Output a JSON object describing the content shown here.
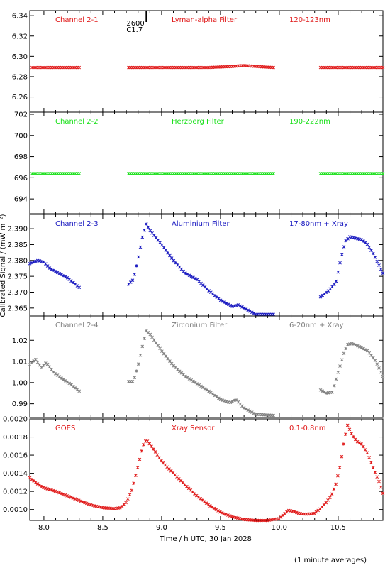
{
  "chart_data": [
    {
      "type": "scatter",
      "labels": [
        "Channel 2-1",
        "Lyman-alpha Filter",
        "120-123nm"
      ],
      "color": "#e01818",
      "ylim": [
        6.245,
        6.345
      ],
      "yticks": [
        "6.26",
        "6.28",
        "6.30",
        "6.32",
        "6.34"
      ],
      "ytick_values": [
        6.26,
        6.28,
        6.3,
        6.32,
        6.34
      ],
      "annotation": {
        "x": 8.87,
        "text_top": "2600",
        "text_bottom": "C1.7"
      },
      "series": [
        {
          "x": [
            7.9,
            8.3
          ],
          "y": [
            6.289,
            6.289
          ]
        },
        {
          "x": [
            8.72,
            9.4,
            9.6,
            9.7,
            9.8,
            9.95
          ],
          "y": [
            6.289,
            6.289,
            6.29,
            6.291,
            6.29,
            6.289
          ]
        },
        {
          "x": [
            10.35,
            10.88
          ],
          "y": [
            6.289,
            6.289
          ]
        }
      ]
    },
    {
      "type": "scatter",
      "labels": [
        "Channel 2-2",
        "Herzberg Filter",
        "190-222nm"
      ],
      "color": "#18e018",
      "ylim": [
        692.6,
        702.2
      ],
      "yticks": [
        "694",
        "696",
        "698",
        "700",
        "702"
      ],
      "ytick_values": [
        694,
        696,
        698,
        700,
        702
      ],
      "series": [
        {
          "x": [
            7.9,
            8.3
          ],
          "y": [
            696.4,
            696.4
          ]
        },
        {
          "x": [
            8.72,
            9.95
          ],
          "y": [
            696.4,
            696.4
          ]
        },
        {
          "x": [
            10.35,
            10.88
          ],
          "y": [
            696.4,
            696.4
          ]
        }
      ]
    },
    {
      "type": "scatter",
      "labels": [
        "Channel 2-3",
        "Aluminium Filter",
        "17-80nm + Xray"
      ],
      "color": "#1818c0",
      "ylim": [
        2.3625,
        2.3945
      ],
      "yticks": [
        "2.365",
        "2.370",
        "2.375",
        "2.380",
        "2.385",
        "2.390"
      ],
      "ytick_values": [
        2.365,
        2.37,
        2.375,
        2.38,
        2.385,
        2.39
      ],
      "series": [
        {
          "x": [
            7.88,
            7.95,
            8.0,
            8.05,
            8.1,
            8.2,
            8.3
          ],
          "y": [
            2.379,
            2.38,
            2.3795,
            2.3775,
            2.3765,
            2.3745,
            2.3715
          ]
        },
        {
          "x": [
            8.72,
            8.76,
            8.8,
            8.84,
            8.87,
            8.9,
            9.0,
            9.1,
            9.2,
            9.3,
            9.4,
            9.5,
            9.6,
            9.65,
            9.7,
            9.8,
            9.95
          ],
          "y": [
            2.3725,
            2.374,
            2.3805,
            2.388,
            2.3915,
            2.3895,
            2.385,
            2.38,
            2.376,
            2.374,
            2.3705,
            2.3675,
            2.3655,
            2.366,
            2.365,
            2.363,
            2.363
          ]
        },
        {
          "x": [
            10.35,
            10.42,
            10.48,
            10.52,
            10.56,
            10.6,
            10.65,
            10.7,
            10.75,
            10.8,
            10.88
          ],
          "y": [
            2.3685,
            2.3705,
            2.373,
            2.38,
            2.386,
            2.3875,
            2.387,
            2.3865,
            2.385,
            2.382,
            2.376
          ]
        }
      ]
    },
    {
      "type": "scatter",
      "labels": [
        "Channel 2-4",
        "Zirconium Filter",
        "6-20nm + Xray"
      ],
      "color": "#808080",
      "ylim": [
        0.9835,
        1.0315
      ],
      "yticks": [
        "0.99",
        "1.00",
        "1.01",
        "1.02"
      ],
      "ytick_values": [
        0.99,
        1.0,
        1.01,
        1.02
      ],
      "series": [
        {
          "x": [
            7.88,
            7.93,
            7.98,
            8.02,
            8.08,
            8.15,
            8.22,
            8.3
          ],
          "y": [
            1.0085,
            1.011,
            1.007,
            1.0095,
            1.005,
            1.002,
            0.9995,
            0.996
          ]
        },
        {
          "x": [
            8.72,
            8.76,
            8.8,
            8.84,
            8.87,
            8.9,
            9.0,
            9.1,
            9.2,
            9.3,
            9.4,
            9.5,
            9.58,
            9.63,
            9.7,
            9.8,
            9.95
          ],
          "y": [
            1.0005,
            1.0005,
            1.008,
            1.018,
            1.0245,
            1.023,
            1.015,
            1.008,
            1.003,
            0.9995,
            0.996,
            0.992,
            0.9905,
            0.992,
            0.988,
            0.985,
            0.9845
          ]
        },
        {
          "x": [
            10.35,
            10.4,
            10.45,
            10.5,
            10.55,
            10.58,
            10.62,
            10.68,
            10.75,
            10.82,
            10.88
          ],
          "y": [
            0.9965,
            0.995,
            0.9955,
            1.005,
            1.014,
            1.018,
            1.0185,
            1.017,
            1.015,
            1.01,
            1.003
          ]
        }
      ]
    },
    {
      "type": "scatter",
      "labels": [
        "GOES",
        "Xray Sensor",
        "0.1-0.8nm"
      ],
      "color": "#e01818",
      "ylim": [
        0.00088,
        0.002
      ],
      "yticks": [
        "0.0010",
        "0.0012",
        "0.0014",
        "0.0016",
        "0.0018",
        "0.0020"
      ],
      "ytick_values": [
        0.001,
        0.0012,
        0.0014,
        0.0016,
        0.0018,
        0.002
      ],
      "xlabel": "Time / h UTC, 30 Jan 2028",
      "xlim": [
        7.88,
        10.88
      ],
      "xticks": [
        "8.0",
        "8.5",
        "9.0",
        "9.5",
        "10.0",
        "10.5"
      ],
      "xtick_values": [
        8.0,
        8.5,
        9.0,
        9.5,
        10.0,
        10.5
      ],
      "series": [
        {
          "x": [
            7.88,
            7.95,
            8.0,
            8.1,
            8.2,
            8.3,
            8.4,
            8.5,
            8.6,
            8.65,
            8.7,
            8.75,
            8.8,
            8.84,
            8.87,
            8.9,
            8.95,
            9.0,
            9.1,
            9.2,
            9.3,
            9.4,
            9.5,
            9.6,
            9.7,
            9.8,
            9.9,
            9.95,
            10.0,
            10.05,
            10.08,
            10.12,
            10.16,
            10.2,
            10.25,
            10.3,
            10.35,
            10.4,
            10.44,
            10.48,
            10.52,
            10.55,
            10.58,
            10.62,
            10.66,
            10.7,
            10.75,
            10.8,
            10.85,
            10.88
          ],
          "y": [
            0.00135,
            0.00128,
            0.00124,
            0.0012,
            0.00115,
            0.0011,
            0.00105,
            0.00102,
            0.00101,
            0.00102,
            0.00108,
            0.00122,
            0.00148,
            0.0017,
            0.00177,
            0.00172,
            0.00163,
            0.00153,
            0.0014,
            0.00127,
            0.00115,
            0.00105,
            0.00097,
            0.00092,
            0.00089,
            0.00088,
            0.00088,
            0.00089,
            0.0009,
            0.00096,
            0.00099,
            0.00098,
            0.00096,
            0.00095,
            0.00095,
            0.00096,
            0.00101,
            0.00108,
            0.00115,
            0.00128,
            0.0015,
            0.00175,
            0.00193,
            0.00182,
            0.00175,
            0.00172,
            0.00162,
            0.00145,
            0.0013,
            0.00118
          ]
        }
      ]
    }
  ],
  "page": {
    "ylabel": "Calibrated Signal / (mW m⁻²)",
    "note": "(1 minute averages)"
  }
}
